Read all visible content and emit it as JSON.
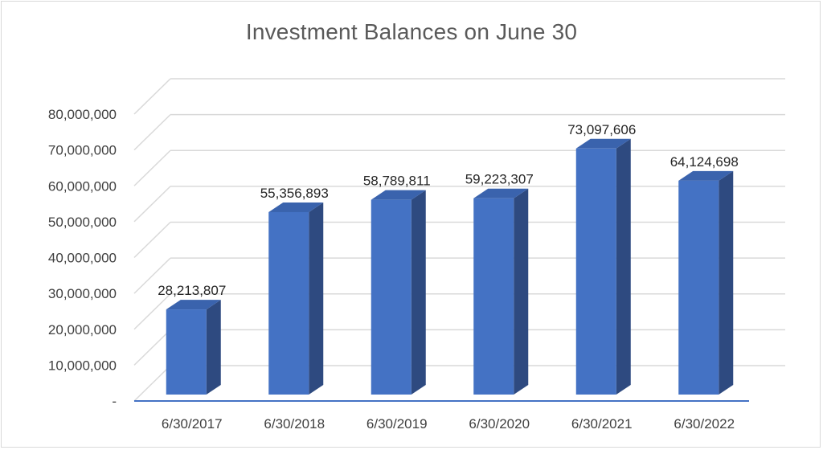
{
  "chart_data": {
    "type": "bar",
    "title": "Investment Balances on June 30",
    "categories": [
      "6/30/2017",
      "6/30/2018",
      "6/30/2019",
      "6/30/2020",
      "6/30/2021",
      "6/30/2022"
    ],
    "values": [
      28213807,
      55356893,
      58789811,
      59223307,
      73097606,
      64124698
    ],
    "value_labels": [
      "28,213,807",
      "55,356,893",
      "58,789,811",
      "59,223,307",
      "73,097,606",
      "64,124,698"
    ],
    "y_ticks": [
      0,
      10000000,
      20000000,
      30000000,
      40000000,
      50000000,
      60000000,
      70000000,
      80000000
    ],
    "y_tick_labels": [
      "-",
      "10,000,000",
      "20,000,000",
      "30,000,000",
      "40,000,000",
      "50,000,000",
      "60,000,000",
      "70,000,000",
      "80,000,000"
    ],
    "ylim": [
      0,
      80000000
    ],
    "grid": true,
    "style": "3d-column",
    "xlabel": "",
    "ylabel": "",
    "colors": {
      "front": "#4472c4",
      "side": "#2e4a80",
      "top": "#3a63ad",
      "grid": "#d9d9d9",
      "axis": "#4472c4"
    }
  }
}
